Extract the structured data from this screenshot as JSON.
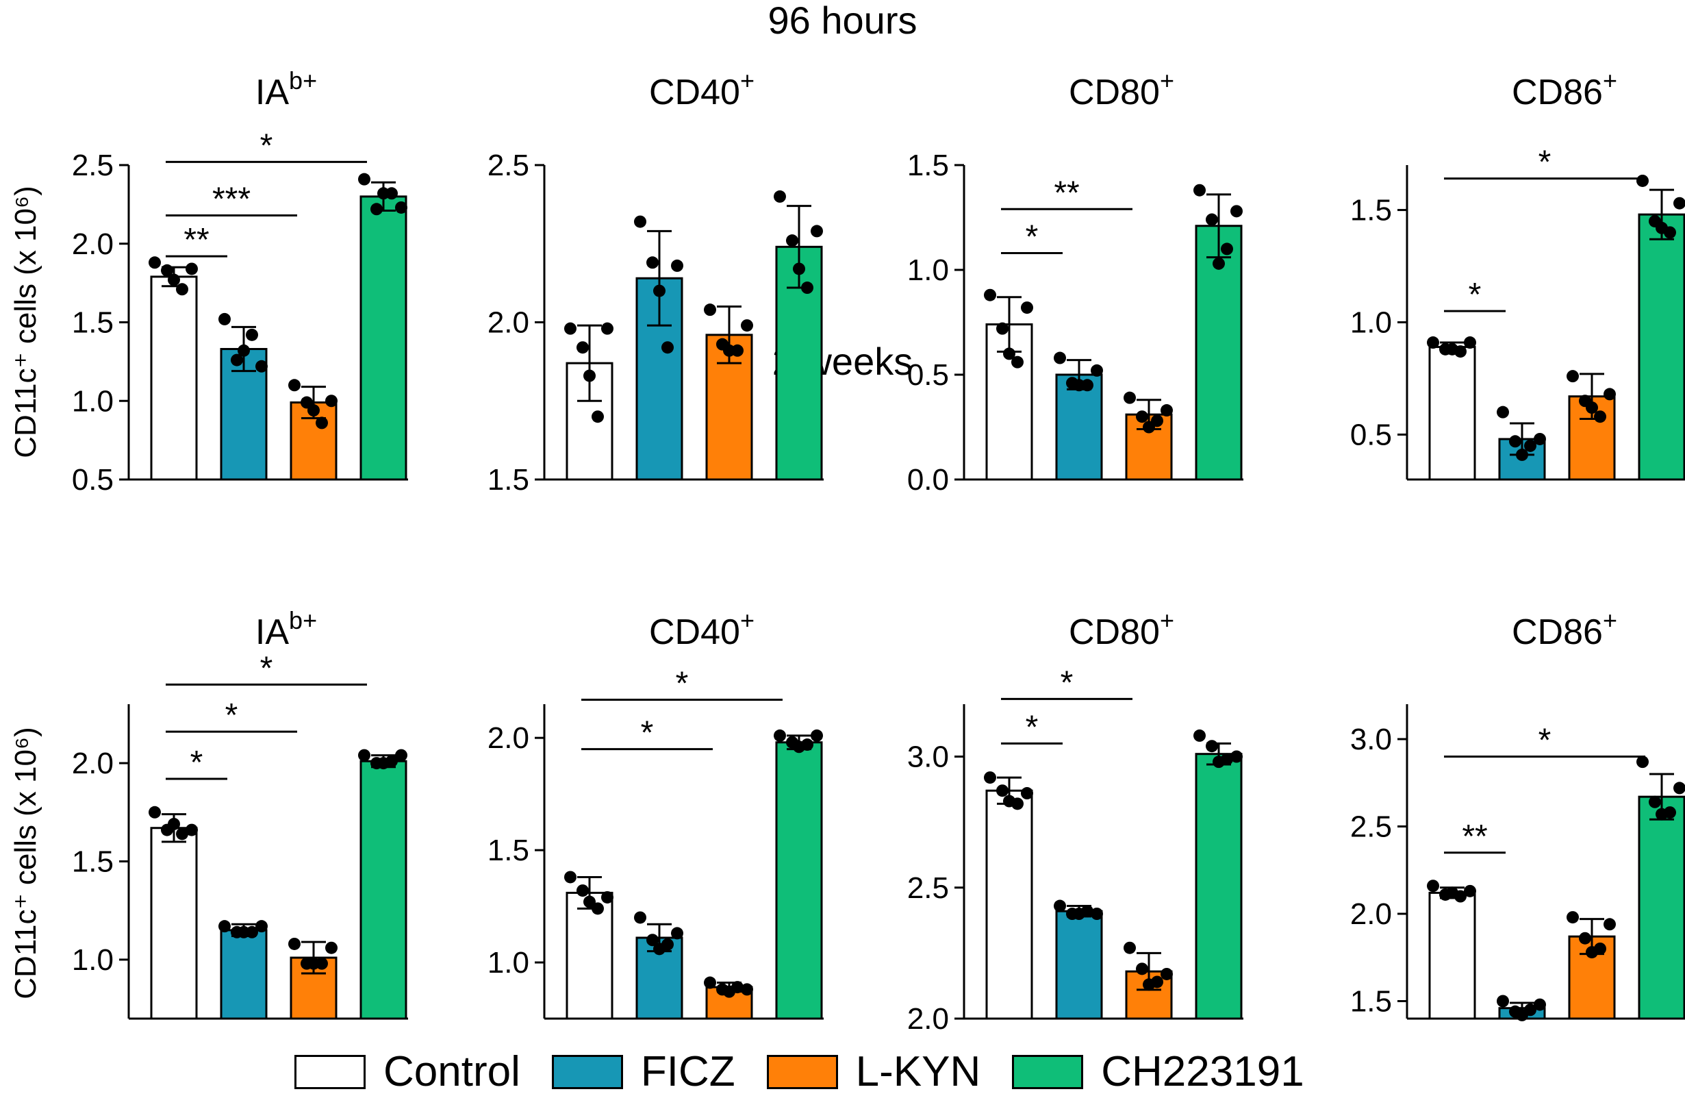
{
  "rows": [
    {
      "title": "96 hours"
    },
    {
      "title": "2 weeks"
    }
  ],
  "y_axis_label": "CD11c⁺ cells (x 10⁶)",
  "groups": [
    {
      "name": "Control",
      "color": "#ffffff"
    },
    {
      "name": "FICZ",
      "color": "#1797b5"
    },
    {
      "name": "L-KYN",
      "color": "#ff8008"
    },
    {
      "name": "CH223191",
      "color": "#0fbe78"
    }
  ],
  "chart_data": [
    {
      "type": "bar",
      "row": 0,
      "col": 0,
      "title": "IA",
      "title_sup": "b+",
      "categories": [
        "Control",
        "FICZ",
        "L-KYN",
        "CH223191"
      ],
      "ylim": [
        0.5,
        2.5
      ],
      "yticks": [
        "0.5",
        "1.0",
        "1.5",
        "2.0",
        "2.5"
      ],
      "ytick_values": [
        0.5,
        1.0,
        1.5,
        2.0,
        2.5
      ],
      "values": [
        1.79,
        1.33,
        0.99,
        2.3
      ],
      "errors": [
        0.06,
        0.14,
        0.1,
        0.09
      ],
      "points": [
        [
          1.88,
          1.83,
          1.77,
          1.71,
          1.84
        ],
        [
          1.52,
          1.26,
          1.32,
          1.42,
          1.22
        ],
        [
          1.1,
          0.99,
          0.94,
          0.86,
          1.0
        ],
        [
          2.41,
          2.22,
          2.32,
          2.32,
          2.23
        ]
      ],
      "significance": [
        {
          "from": 0,
          "to": 1,
          "y": 1.92,
          "label": "**"
        },
        {
          "from": 0,
          "to": 2,
          "y": 2.18,
          "label": "***"
        },
        {
          "from": 0,
          "to": 3,
          "y": 2.52,
          "label": "*"
        }
      ]
    },
    {
      "type": "bar",
      "row": 0,
      "col": 1,
      "title": "CD40",
      "title_sup": "+",
      "categories": [
        "Control",
        "FICZ",
        "L-KYN",
        "CH223191"
      ],
      "ylim": [
        1.5,
        2.5
      ],
      "yticks": [
        "1.5",
        "2.0",
        "2.5"
      ],
      "ytick_values": [
        1.5,
        2.0,
        2.5
      ],
      "values": [
        1.87,
        2.14,
        1.96,
        2.24
      ],
      "errors": [
        0.12,
        0.15,
        0.09,
        0.13
      ],
      "points": [
        [
          1.98,
          1.92,
          1.83,
          1.7,
          1.98
        ],
        [
          2.32,
          2.19,
          2.1,
          1.92,
          2.18
        ],
        [
          2.04,
          1.93,
          1.91,
          1.91,
          1.99
        ],
        [
          2.4,
          2.26,
          2.17,
          2.11,
          2.29
        ]
      ],
      "significance": []
    },
    {
      "type": "bar",
      "row": 0,
      "col": 2,
      "title": "CD80",
      "title_sup": "+",
      "categories": [
        "Control",
        "FICZ",
        "L-KYN",
        "CH223191"
      ],
      "ylim": [
        0.0,
        1.5
      ],
      "yticks": [
        "0.0",
        "0.5",
        "1.0",
        "1.5"
      ],
      "ytick_values": [
        0.0,
        0.5,
        1.0,
        1.5
      ],
      "values": [
        0.74,
        0.5,
        0.31,
        1.21
      ],
      "errors": [
        0.13,
        0.07,
        0.07,
        0.15
      ],
      "points": [
        [
          0.88,
          0.72,
          0.6,
          0.56,
          0.82
        ],
        [
          0.58,
          0.46,
          0.45,
          0.45,
          0.52
        ],
        [
          0.39,
          0.3,
          0.25,
          0.28,
          0.33
        ],
        [
          1.38,
          1.24,
          1.03,
          1.1,
          1.28
        ]
      ],
      "significance": [
        {
          "from": 0,
          "to": 1,
          "y": 1.08,
          "label": "*"
        },
        {
          "from": 0,
          "to": 2,
          "y": 1.29,
          "label": "**"
        }
      ]
    },
    {
      "type": "bar",
      "row": 0,
      "col": 3,
      "title": "CD86",
      "title_sup": "+",
      "categories": [
        "Control",
        "FICZ",
        "L-KYN",
        "CH223191"
      ],
      "ylim": [
        0.3,
        1.7
      ],
      "yticks": [
        "0.5",
        "1.0",
        "1.5"
      ],
      "ytick_values": [
        0.5,
        1.0,
        1.5
      ],
      "values": [
        0.89,
        0.48,
        0.67,
        1.48
      ],
      "errors": [
        0.02,
        0.07,
        0.1,
        0.11
      ],
      "points": [
        [
          0.91,
          0.88,
          0.88,
          0.87,
          0.91
        ],
        [
          0.6,
          0.47,
          0.41,
          0.45,
          0.48
        ],
        [
          0.76,
          0.65,
          0.62,
          0.58,
          0.68
        ],
        [
          1.63,
          1.45,
          1.42,
          1.4,
          1.53
        ]
      ],
      "significance": [
        {
          "from": 0,
          "to": 1,
          "y": 1.05,
          "label": "*"
        },
        {
          "from": 0,
          "to": 3,
          "y": 1.64,
          "label": "*"
        }
      ]
    },
    {
      "type": "bar",
      "row": 1,
      "col": 0,
      "title": "IA",
      "title_sup": "b+",
      "categories": [
        "Control",
        "FICZ",
        "L-KYN",
        "CH223191"
      ],
      "ylim": [
        0.7,
        2.3
      ],
      "yticks": [
        "1.0",
        "1.5",
        "2.0"
      ],
      "ytick_values": [
        1.0,
        1.5,
        2.0
      ],
      "values": [
        1.67,
        1.15,
        1.01,
        2.01
      ],
      "errors": [
        0.07,
        0.03,
        0.08,
        0.03
      ],
      "points": [
        [
          1.75,
          1.66,
          1.69,
          1.64,
          1.66
        ],
        [
          1.17,
          1.14,
          1.14,
          1.14,
          1.17
        ],
        [
          1.08,
          0.98,
          0.98,
          0.98,
          1.06
        ],
        [
          2.04,
          2.0,
          2.0,
          2.01,
          2.04
        ]
      ],
      "significance": [
        {
          "from": 0,
          "to": 1,
          "y": 1.92,
          "label": "*"
        },
        {
          "from": 0,
          "to": 2,
          "y": 2.16,
          "label": "*"
        },
        {
          "from": 0,
          "to": 3,
          "y": 2.4,
          "label": "*"
        }
      ]
    },
    {
      "type": "bar",
      "row": 1,
      "col": 1,
      "title": "CD40",
      "title_sup": "+",
      "categories": [
        "Control",
        "FICZ",
        "L-KYN",
        "CH223191"
      ],
      "ylim": [
        0.75,
        2.15
      ],
      "yticks": [
        "1.0",
        "1.5",
        "2.0"
      ],
      "ytick_values": [
        1.0,
        1.5,
        2.0
      ],
      "values": [
        1.31,
        1.11,
        0.89,
        1.98
      ],
      "errors": [
        0.07,
        0.06,
        0.02,
        0.03
      ],
      "points": [
        [
          1.38,
          1.32,
          1.27,
          1.24,
          1.29
        ],
        [
          1.2,
          1.1,
          1.06,
          1.08,
          1.13
        ],
        [
          0.91,
          0.88,
          0.87,
          0.89,
          0.88
        ],
        [
          2.01,
          1.98,
          1.96,
          1.97,
          2.01
        ]
      ],
      "significance": [
        {
          "from": 0,
          "to": 2,
          "y": 1.95,
          "label": "*"
        },
        {
          "from": 0,
          "to": 3,
          "y": 2.17,
          "label": "*"
        }
      ]
    },
    {
      "type": "bar",
      "row": 1,
      "col": 2,
      "title": "CD80",
      "title_sup": "+",
      "categories": [
        "Control",
        "FICZ",
        "L-KYN",
        "CH223191"
      ],
      "ylim": [
        2.0,
        3.2
      ],
      "yticks": [
        "2.0",
        "2.5",
        "3.0"
      ],
      "ytick_values": [
        2.0,
        2.5,
        3.0
      ],
      "values": [
        2.87,
        2.41,
        2.18,
        3.01
      ],
      "errors": [
        0.05,
        0.02,
        0.07,
        0.04
      ],
      "points": [
        [
          2.92,
          2.87,
          2.83,
          2.82,
          2.86
        ],
        [
          2.43,
          2.4,
          2.4,
          2.41,
          2.4
        ],
        [
          2.27,
          2.19,
          2.13,
          2.14,
          2.17
        ],
        [
          3.08,
          3.04,
          2.98,
          2.99,
          3.0
        ]
      ],
      "significance": [
        {
          "from": 0,
          "to": 1,
          "y": 3.05,
          "label": "*"
        },
        {
          "from": 0,
          "to": 2,
          "y": 3.22,
          "label": "*"
        }
      ]
    },
    {
      "type": "bar",
      "row": 1,
      "col": 3,
      "title": "CD86",
      "title_sup": "+",
      "categories": [
        "Control",
        "FICZ",
        "L-KYN",
        "CH223191"
      ],
      "ylim": [
        1.4,
        3.2
      ],
      "yticks": [
        "1.5",
        "2.0",
        "2.5",
        "3.0"
      ],
      "ytick_values": [
        1.5,
        2.0,
        2.5,
        3.0
      ],
      "values": [
        2.12,
        1.46,
        1.87,
        2.67
      ],
      "errors": [
        0.03,
        0.03,
        0.1,
        0.13
      ],
      "points": [
        [
          2.16,
          2.11,
          2.12,
          2.1,
          2.13
        ],
        [
          1.5,
          1.44,
          1.42,
          1.45,
          1.48
        ],
        [
          1.98,
          1.86,
          1.78,
          1.8,
          1.94
        ],
        [
          2.87,
          2.64,
          2.57,
          2.58,
          2.72
        ]
      ],
      "significance": [
        {
          "from": 0,
          "to": 1,
          "y": 2.35,
          "label": "**"
        },
        {
          "from": 0,
          "to": 3,
          "y": 2.9,
          "label": "*"
        }
      ]
    }
  ]
}
